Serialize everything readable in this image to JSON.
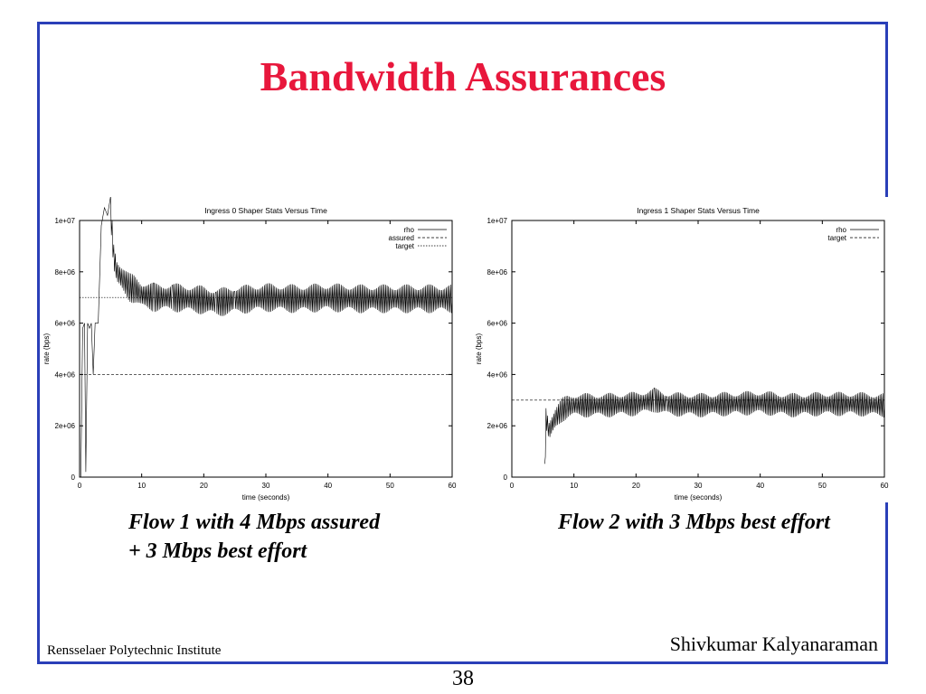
{
  "slide": {
    "title": "Bandwidth Assurances",
    "caption_left_line1": "Flow 1 with 4 Mbps assured",
    "caption_left_line2": "+ 3 Mbps best effort",
    "caption_right": "Flow 2 with 3 Mbps best effort",
    "footer_left": "Rensselaer Polytechnic Institute",
    "footer_right": "Shivkumar Kalyanaraman",
    "page_number": "38",
    "colors": {
      "frame": "#2a3fb8",
      "title": "#e8173c"
    }
  },
  "chart_data": [
    {
      "type": "line",
      "title": "Ingress 0 Shaper Stats Versus Time",
      "xlabel": "time (seconds)",
      "ylabel": "rate (bps)",
      "xlim": [
        0,
        60
      ],
      "ylim": [
        0,
        10000000
      ],
      "x_ticks": [
        "0",
        "10",
        "20",
        "30",
        "40",
        "50",
        "60"
      ],
      "y_ticks": [
        "0",
        "2e+06",
        "4e+06",
        "6e+06",
        "8e+06",
        "1e+07"
      ],
      "legend_position": "top-right",
      "series": [
        {
          "name": "rho",
          "style": "solid",
          "oscillating": true,
          "points": [
            [
              0.2,
              0
            ],
            [
              0.5,
              5800000
            ],
            [
              0.8,
              6000000
            ],
            [
              1.0,
              200000
            ],
            [
              1.3,
              6000000
            ],
            [
              1.6,
              5800000
            ],
            [
              1.9,
              6000000
            ],
            [
              2.2,
              4000000
            ],
            [
              2.5,
              6000000
            ],
            [
              3.0,
              6000000
            ],
            [
              3.5,
              9800000
            ],
            [
              4.0,
              10500000
            ],
            [
              4.5,
              10200000
            ],
            [
              5.0,
              10400000
            ],
            [
              5.5,
              8600000
            ],
            [
              6.0,
              8000000
            ],
            [
              7.0,
              7700000
            ],
            [
              8.0,
              7400000
            ],
            [
              9.0,
              7300000
            ],
            [
              10.0,
              7100000
            ],
            [
              12.0,
              7000000
            ],
            [
              15.0,
              7000000
            ],
            [
              20.0,
              6900000
            ],
            [
              22.0,
              6800000
            ],
            [
              25.0,
              6900000
            ],
            [
              30.0,
              7000000
            ],
            [
              35.0,
              6950000
            ],
            [
              40.0,
              7000000
            ],
            [
              45.0,
              6950000
            ],
            [
              50.0,
              6950000
            ],
            [
              55.0,
              6950000
            ],
            [
              60.0,
              6950000
            ]
          ]
        },
        {
          "name": "assured",
          "style": "dashed",
          "y": 4000000,
          "x_start": 0
        },
        {
          "name": "target",
          "style": "dotted",
          "y": 7000000,
          "x_start": 0
        }
      ]
    },
    {
      "type": "line",
      "title": "Ingress 1 Shaper Stats Versus Time",
      "xlabel": "time (seconds)",
      "ylabel": "rate (bps)",
      "xlim": [
        0,
        60
      ],
      "ylim": [
        0,
        10000000
      ],
      "x_ticks": [
        "0",
        "10",
        "20",
        "30",
        "40",
        "50",
        "60"
      ],
      "y_ticks": [
        "0",
        "2e+06",
        "4e+06",
        "6e+06",
        "8e+06",
        "1e+07"
      ],
      "legend_position": "top-right",
      "series": [
        {
          "name": "rho",
          "style": "solid",
          "oscillating": true,
          "points": [
            [
              5.3,
              100000
            ],
            [
              5.5,
              2300000
            ],
            [
              6.0,
              1800000
            ],
            [
              7.0,
              2300000
            ],
            [
              8.0,
              2600000
            ],
            [
              9.0,
              2750000
            ],
            [
              10.0,
              2800000
            ],
            [
              15.0,
              2800000
            ],
            [
              20.0,
              2850000
            ],
            [
              23.0,
              3000000
            ],
            [
              25.0,
              2850000
            ],
            [
              30.0,
              2800000
            ],
            [
              35.0,
              2850000
            ],
            [
              40.0,
              2900000
            ],
            [
              45.0,
              2800000
            ],
            [
              50.0,
              2850000
            ],
            [
              55.0,
              2850000
            ],
            [
              60.0,
              2800000
            ]
          ]
        },
        {
          "name": "target",
          "style": "dashed",
          "y": 3000000,
          "x_start": 0
        }
      ]
    }
  ]
}
